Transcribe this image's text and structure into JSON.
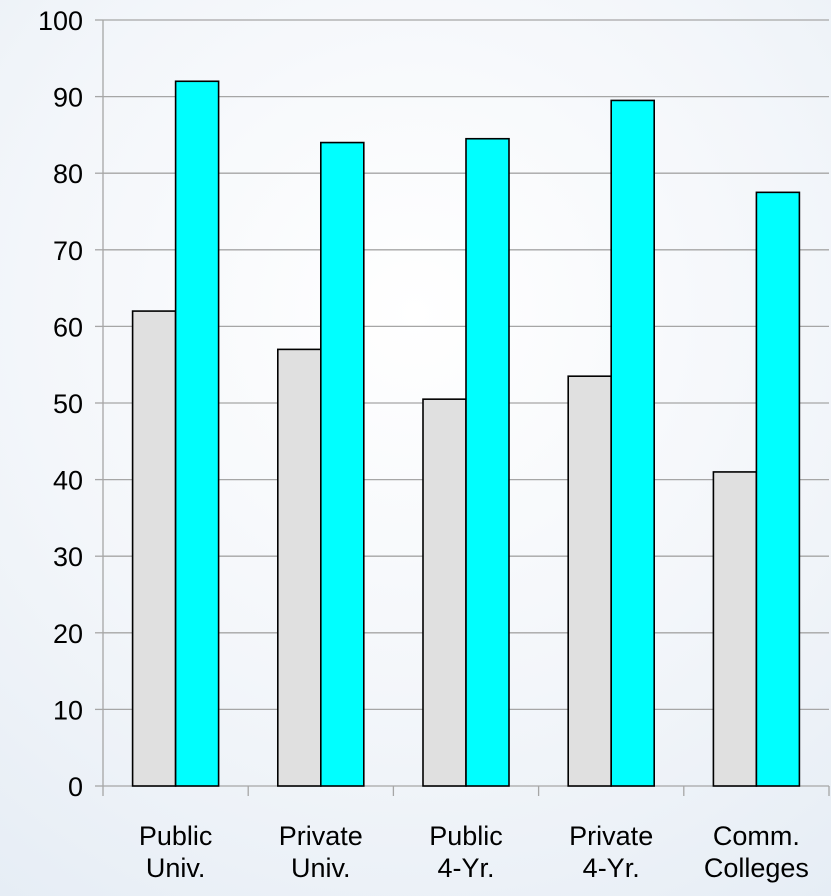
{
  "chart_data": {
    "type": "bar",
    "categories": [
      [
        "Public",
        "Univ."
      ],
      [
        "Private",
        "Univ."
      ],
      [
        "Public",
        "4-Yr."
      ],
      [
        "Private",
        "4-Yr."
      ],
      [
        "Comm.",
        "Colleges"
      ]
    ],
    "series": [
      {
        "values": [
          62,
          57,
          50.5,
          53.5,
          41
        ],
        "color": "#e0e0e0"
      },
      {
        "values": [
          92,
          84,
          84.5,
          89.5,
          77.5
        ],
        "color": "#00ffff"
      }
    ],
    "yticks": [
      0,
      10,
      20,
      30,
      40,
      50,
      60,
      70,
      80,
      90,
      100
    ],
    "ylim": [
      0,
      100
    ],
    "grid": true,
    "gridColor": "#a6a6a6",
    "barOutline": "#000000"
  }
}
